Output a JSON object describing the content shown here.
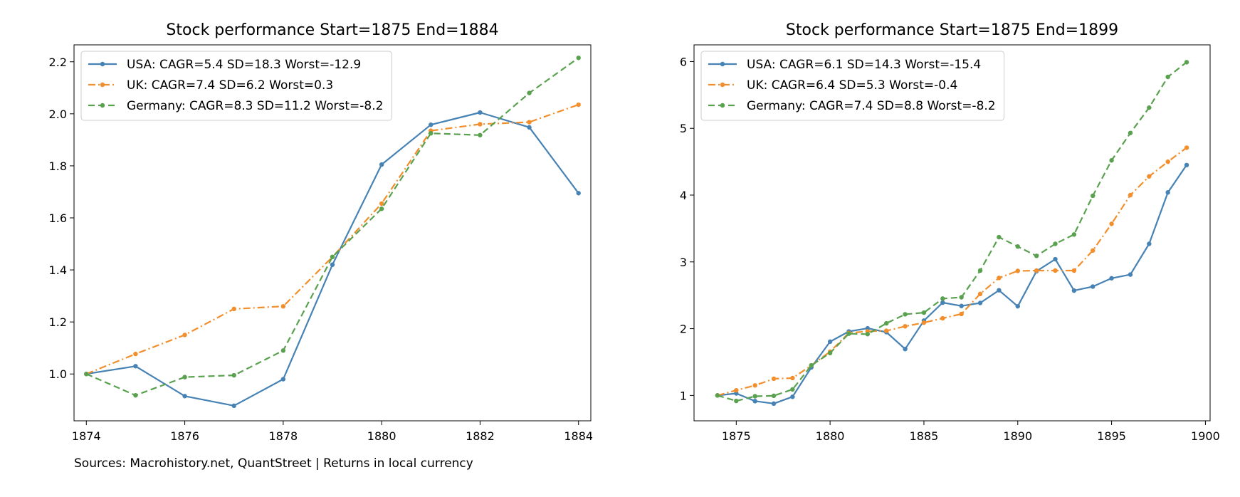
{
  "chart_data": [
    {
      "type": "line",
      "title": "Stock performance  Start=1875  End=1884",
      "xlabel": "",
      "ylabel": "",
      "xlim": [
        1873.75,
        1884.25
      ],
      "ylim": [
        0.82,
        2.265
      ],
      "xticks": [
        1874,
        1876,
        1878,
        1880,
        1882,
        1884
      ],
      "xtick_labels": [
        "1874",
        "1876",
        "1878",
        "1880",
        "1882",
        "1884"
      ],
      "yticks": [
        1.0,
        1.2,
        1.4,
        1.6,
        1.8,
        2.0,
        2.2
      ],
      "ytick_labels": [
        "1.0",
        "1.2",
        "1.4",
        "1.6",
        "1.8",
        "2.0",
        "2.2"
      ],
      "legend_position": "top-left",
      "grid": false,
      "x": [
        1874,
        1875,
        1876,
        1877,
        1878,
        1879,
        1880,
        1881,
        1882,
        1883,
        1884
      ],
      "series": [
        {
          "name": "USA: CAGR=5.4 SD=18.3 Worst=-12.9",
          "color": "#4682b4",
          "dash": "solid",
          "values": [
            1.0,
            1.03,
            0.915,
            0.878,
            0.98,
            1.42,
            1.805,
            1.958,
            2.005,
            1.948,
            1.695
          ]
        },
        {
          "name": "UK: CAGR=7.4 SD=6.2 Worst=0.3",
          "color": "#f28e2b",
          "dash": "dashdot",
          "values": [
            1.0,
            1.077,
            1.15,
            1.25,
            1.26,
            1.45,
            1.655,
            1.935,
            1.96,
            1.968,
            2.035
          ]
        },
        {
          "name": "Germany: CAGR=8.3 SD=11.2 Worst=-8.2",
          "color": "#59a14f",
          "dash": "dashed",
          "values": [
            1.0,
            0.918,
            0.988,
            0.995,
            1.09,
            1.45,
            1.635,
            1.925,
            1.918,
            2.08,
            2.215
          ]
        }
      ]
    },
    {
      "type": "line",
      "title": "Stock performance  Start=1875  End=1899",
      "xlabel": "",
      "ylabel": "",
      "xlim": [
        1872.75,
        1900.25
      ],
      "ylim": [
        0.62,
        6.25
      ],
      "xticks": [
        1875,
        1880,
        1885,
        1890,
        1895,
        1900
      ],
      "xtick_labels": [
        "1875",
        "1880",
        "1885",
        "1890",
        "1895",
        "1900"
      ],
      "yticks": [
        1,
        2,
        3,
        4,
        5,
        6
      ],
      "ytick_labels": [
        "1",
        "2",
        "3",
        "4",
        "5",
        "6"
      ],
      "legend_position": "top-left",
      "grid": false,
      "x": [
        1874,
        1875,
        1876,
        1877,
        1878,
        1879,
        1880,
        1881,
        1882,
        1883,
        1884,
        1885,
        1886,
        1887,
        1888,
        1889,
        1890,
        1891,
        1892,
        1893,
        1894,
        1895,
        1896,
        1897,
        1898,
        1899
      ],
      "series": [
        {
          "name": "USA: CAGR=6.1 SD=14.3 Worst=-15.4",
          "color": "#4682b4",
          "dash": "solid",
          "values": [
            1.0,
            1.03,
            0.915,
            0.878,
            0.98,
            1.42,
            1.805,
            1.958,
            2.005,
            1.948,
            1.695,
            2.12,
            2.39,
            2.34,
            2.385,
            2.575,
            2.335,
            2.86,
            3.04,
            2.57,
            2.63,
            2.755,
            2.81,
            3.27,
            4.04,
            4.45
          ]
        },
        {
          "name": "UK: CAGR=6.4 SD=5.3 Worst=-0.4",
          "color": "#f28e2b",
          "dash": "dashdot",
          "values": [
            1.0,
            1.077,
            1.15,
            1.25,
            1.26,
            1.45,
            1.655,
            1.935,
            1.96,
            1.968,
            2.035,
            2.09,
            2.155,
            2.22,
            2.52,
            2.76,
            2.865,
            2.87,
            2.87,
            2.87,
            3.17,
            3.57,
            4.0,
            4.28,
            4.5,
            4.71
          ]
        },
        {
          "name": "Germany: CAGR=7.4 SD=8.8 Worst=-8.2",
          "color": "#59a14f",
          "dash": "dashed",
          "values": [
            1.0,
            0.918,
            0.988,
            0.995,
            1.09,
            1.45,
            1.635,
            1.925,
            1.918,
            2.08,
            2.215,
            2.24,
            2.45,
            2.47,
            2.87,
            3.37,
            3.23,
            3.09,
            3.27,
            3.41,
            3.99,
            4.52,
            4.93,
            5.31,
            5.77,
            5.99
          ]
        }
      ]
    }
  ],
  "footer": {
    "source": "Sources: Macrohistory.net, QuantStreet  |  Returns in local currency"
  }
}
